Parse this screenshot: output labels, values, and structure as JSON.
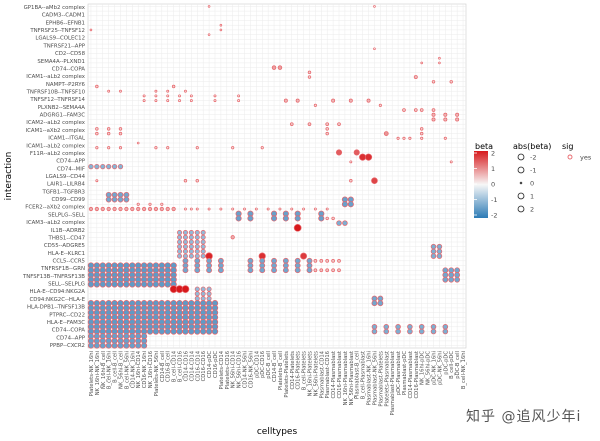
{
  "chart_data": {
    "type": "scatter",
    "xlabel": "celltypes",
    "ylabel": "interaction",
    "legend_position": "right",
    "grid": true,
    "y_categories_visible": [
      "GP1BA--aMb2 complex",
      "CADM3--CADM1",
      "EPHB6--EFNB1",
      "TNFRSF25--TNFSF12",
      "LGALS9--COLEC12",
      "TNFRSF21--APP",
      "CD2--CD58",
      "SEMA4A--PLXND1",
      "CD74--COPA",
      "ICAM1--aLb2 complex",
      "NAMPT--P2RY6",
      "TNFRSF10B--TNFSF10",
      "TNFSF12--TNFRSF14",
      "PLXNB2--SEMA4A",
      "ADGRG1--FAM3C",
      "ICAM2--aLb2 complex",
      "ICAM1--aXb2 complex",
      "ICAM1--ITGAL",
      "ICAM1--aLb2 complex",
      "F11R--aLb2 complex",
      "CD74--APP",
      "CD74--MIF",
      "LGALS9--CD44",
      "LAIR1--LILRB4",
      "TGFB1--TGFBR3",
      "CD99--CD99",
      "FCER2--aXb2 complex",
      "SELPLG--SELL",
      "ICAM3--aLb2 complex",
      "IL1B--ADRB2",
      "THBS1--CD47",
      "CD55--ADGRE5",
      "HLA-E--KLRC1",
      "CCL5--CCR5",
      "TNFRSF1B--GRN",
      "TNFSF13B--TNFRSF13B",
      "SELL--SELPLG",
      "HLA-E--CD94:NKG2A",
      "CD94:NKG2C--HLA-E",
      "HLA-DPB1--TNFSF13B",
      "PTPRC--CD22",
      "HLA-E--FAM3C",
      "CD74--COPA",
      "CD74--APP",
      "PPBP--CXCR2"
    ],
    "x_categories": [
      "Platelets-NK_16hi",
      "NK_16hi-NK_16hi",
      "NK_16hi-B_cell",
      "B_cell-NK_16hi",
      "B_cell-B_cell",
      "NK_56hi-B_cell",
      "B_cell-NK_56hi",
      "CD14-NK_16hi",
      "NK_16hi-CD14",
      "CD16-NK_16hi",
      "NK_16hi-CD16",
      "Platelets-NK_56hi",
      "CD14-B_cell",
      "CD16-B_cell",
      "B_cell-CD14",
      "B_cell-CD16",
      "CD14-CD16",
      "CD14-CD14",
      "CD16-CD14",
      "CD16-CD16",
      "CD14-pDC",
      "CD16-pDC",
      "Platelets-CD14",
      "Platelets-CD16",
      "NK_56hi-CD14",
      "NK_56hi-CD16",
      "CD14-NK_56hi",
      "CD16-NK_56hi",
      "pDC-CD14",
      "pDC-CD16",
      "pDC-B_cell",
      "CD14-B_cell_2",
      "Platelets-B_cell",
      "Platelets-Platelets",
      "CD14-Platelets",
      "CD16-Platelets",
      "B_cell-Platelets",
      "NK_16hi-Platelets",
      "NK_56hi-Platelets",
      "Plasmablast-CD14",
      "Plasmablast-CD16",
      "CD14-Plasmablast",
      "CD16-Plasmablast",
      "NK_16hi-Plasmablast",
      "NK_56hi-Plasmablast",
      "Plasmablast-B_cell",
      "B_cell-Plasmablast",
      "Plasmablast-NK_16hi",
      "Plasmablast-NK_56hi",
      "Plasmablast-Platelets",
      "Platelets-Plasmablast",
      "Plasmablast-Plasmablast",
      "pDC-Plasmablast",
      "Plasmablast-pDC",
      "CD14-Plasmablast_2",
      "CD16-Plasmablast_2",
      "NK_16hi-pDC",
      "NK_56hi-pDC",
      "pDC-NK_16hi",
      "pDC-NK_56hi",
      "pDC-pDC",
      "B_cell-pDC",
      "pDC-B_cell_2",
      "B_cell-NK_16hi_2"
    ],
    "fill_legend": {
      "title": "beta",
      "ticks": [
        "2",
        "1",
        "0",
        "-1",
        "-2"
      ],
      "range": [
        -2,
        2
      ],
      "colors": {
        "high": "#d7191c",
        "mid": "#f7f7f7",
        "low": "#2c7bb6"
      }
    },
    "size_legend": {
      "title": "abs(beta)",
      "labels": [
        "-2",
        "-1",
        "0",
        "1",
        "2"
      ]
    },
    "sig_legend": {
      "title": "sig",
      "labels": [
        "yes"
      ],
      "color": "#e8666b"
    },
    "ring_color": "#e8666b",
    "point_groups": [
      {
        "rows": [
          0
        ],
        "cols": [
          20,
          48
        ],
        "beta": 0.1
      },
      {
        "rows": [
          5
        ],
        "cols": [
          0
        ],
        "beta": 0.1
      },
      {
        "rows": [
          4,
          5
        ],
        "cols": [
          22
        ],
        "beta": 0.1
      },
      {
        "rows": [
          6
        ],
        "cols": [
          20
        ],
        "beta": 0.1
      },
      {
        "rows": [
          9
        ],
        "cols": [
          48
        ],
        "beta": 0.1
      },
      {
        "rows": [
          11,
          12
        ],
        "cols": [
          59
        ],
        "beta": 0.1
      },
      {
        "rows": [
          12
        ],
        "cols": [
          56
        ],
        "beta": 0.1
      },
      {
        "rows": [
          13
        ],
        "cols": [
          31,
          32
        ],
        "beta": 0.8
      },
      {
        "rows": [
          14,
          15
        ],
        "cols": [
          37
        ],
        "beta": 0.4
      },
      {
        "rows": [
          15
        ],
        "cols": [
          55
        ],
        "beta": 0.6
      },
      {
        "rows": [
          16
        ],
        "cols": [
          58,
          61
        ],
        "beta": 0.4
      },
      {
        "rows": [
          17
        ],
        "cols": [
          1,
          14
        ],
        "beta": 0.4
      },
      {
        "rows": [
          18
        ],
        "cols": [
          3,
          5,
          11,
          13,
          16
        ],
        "beta": 0.2
      },
      {
        "rows": [
          19,
          20
        ],
        "cols": [
          9,
          11,
          13,
          15,
          17,
          21,
          25
        ],
        "beta": 0.2
      },
      {
        "rows": [
          20
        ],
        "cols": [
          33,
          35,
          41,
          44,
          47
        ],
        "beta": 0.6
      },
      {
        "rows": [
          21
        ],
        "cols": [
          38,
          49
        ],
        "beta": 0.3
      },
      {
        "rows": [
          22
        ],
        "cols": [
          53,
          55,
          56,
          58
        ],
        "beta": 0.5
      },
      {
        "rows": [
          23,
          24
        ],
        "cols": [
          58,
          60,
          62
        ],
        "beta": 0.6
      },
      {
        "rows": [
          25
        ],
        "cols": [
          34,
          37,
          40,
          42
        ],
        "beta": 0.5
      },
      {
        "rows": [
          26,
          27
        ],
        "cols": [
          1,
          3,
          5,
          40,
          56
        ],
        "beta": 0.4
      },
      {
        "rows": [
          27
        ],
        "cols": [
          50
        ],
        "beta": 0.9
      },
      {
        "rows": [
          28
        ],
        "cols": [
          52,
          53,
          54,
          56,
          60
        ],
        "beta": 0.3
      },
      {
        "rows": [
          29
        ],
        "cols": [
          8
        ],
        "beta": 0.1
      },
      {
        "rows": [
          30
        ],
        "cols": [
          1,
          3,
          5,
          11,
          13,
          18,
          24,
          29
        ],
        "beta": 0.3
      },
      {
        "rows": [
          31
        ],
        "cols": [
          42,
          45
        ],
        "beta": 1.4
      },
      {
        "rows": [
          32
        ],
        "cols": [
          46,
          47
        ],
        "beta": 1.8
      },
      {
        "rows": [
          33
        ],
        "cols": [
          44,
          61
        ],
        "beta": 0.2
      },
      {
        "rows": [
          34
        ],
        "cols": [
          0,
          1,
          2,
          3,
          4,
          5
        ],
        "beta": -1.1
      },
      {
        "rows": [
          37
        ],
        "cols": [
          1
        ],
        "beta": 0.2
      },
      {
        "rows": [
          37
        ],
        "cols": [
          16,
          18,
          44
        ],
        "beta": 0.4
      },
      {
        "rows": [
          37
        ],
        "cols": [
          48
        ],
        "beta": 1.6
      },
      {
        "rows": [
          40,
          41
        ],
        "cols": [
          3,
          4,
          5,
          6
        ],
        "beta": -1.3
      },
      {
        "rows": [
          41,
          42
        ],
        "cols": [
          43,
          44
        ],
        "beta": -1.4
      },
      {
        "rows": [
          42
        ],
        "cols": [
          8,
          10,
          12
        ],
        "beta": 0.3
      },
      {
        "rows": [
          43
        ],
        "cols": [
          0,
          1,
          2,
          3,
          4,
          5,
          6,
          7,
          8,
          9,
          10,
          11,
          12,
          13,
          14
        ],
        "beta": 0.7
      },
      {
        "rows": [
          43
        ],
        "cols": [
          16,
          17,
          18,
          20,
          22,
          24,
          26,
          28,
          30,
          32,
          34,
          36,
          38,
          40
        ],
        "beta": 0.2
      },
      {
        "rows": [
          44,
          45
        ],
        "cols": [
          25,
          27,
          31,
          33,
          35,
          39
        ],
        "beta": -1.4
      },
      {
        "rows": [
          45
        ],
        "cols": [
          40,
          41
        ],
        "beta": 0.4
      },
      {
        "rows": [
          46
        ],
        "cols": [
          42,
          43
        ],
        "beta": -1.2
      },
      {
        "rows": [
          47
        ],
        "cols": [
          35
        ],
        "beta": 2.0
      },
      {
        "rows": [
          48,
          49,
          50,
          51,
          52,
          53
        ],
        "cols": [
          15,
          16,
          17,
          18,
          19
        ],
        "beta": -1.0
      },
      {
        "rows": [
          49
        ],
        "cols": [
          24
        ],
        "beta": 0.7
      },
      {
        "rows": [
          51,
          52,
          53
        ],
        "cols": [
          58,
          59
        ],
        "beta": -1.2
      },
      {
        "rows": [
          53
        ],
        "cols": [
          20
        ],
        "beta": 1.9
      },
      {
        "rows": [
          53
        ],
        "cols": [
          29
        ],
        "beta": 1.8
      },
      {
        "rows": [
          53
        ],
        "cols": [
          36
        ],
        "beta": 1.7
      },
      {
        "rows": [
          54,
          55,
          56
        ],
        "cols": [
          16,
          18,
          20,
          22,
          27,
          29,
          31,
          33,
          35,
          37
        ],
        "beta": -1.3
      },
      {
        "rows": [
          54,
          56
        ],
        "cols": [
          38,
          39,
          40,
          41,
          42
        ],
        "beta": 0.5
      },
      {
        "rows": [
          55,
          56,
          57,
          58,
          59
        ],
        "cols": [
          0,
          1,
          2,
          3,
          4,
          5,
          6,
          7,
          8,
          9,
          10,
          11,
          12,
          13,
          14
        ],
        "beta": -1.5
      },
      {
        "rows": [
          56,
          57,
          58
        ],
        "cols": [
          60,
          61,
          62
        ],
        "beta": -1.3
      },
      {
        "rows": [
          60
        ],
        "cols": [
          14,
          15,
          16
        ],
        "beta": 2.0
      },
      {
        "rows": [
          60,
          61,
          62
        ],
        "cols": [
          18,
          19,
          20
        ],
        "beta": -1.0
      },
      {
        "rows": [
          62,
          63
        ],
        "cols": [
          48,
          49
        ],
        "beta": -1.3
      },
      {
        "rows": [
          63,
          64,
          65,
          66,
          67,
          68,
          69
        ],
        "cols": [
          0,
          1,
          2,
          3,
          4,
          5,
          6,
          7,
          8,
          9,
          10,
          11,
          12,
          13,
          14,
          15,
          16,
          17,
          18,
          19,
          20,
          21
        ],
        "beta": -1.5
      },
      {
        "rows": [
          68,
          69
        ],
        "cols": [
          48,
          50,
          52,
          54,
          56,
          58,
          60
        ],
        "beta": -1.2
      },
      {
        "rows": [
          70,
          71,
          72
        ],
        "cols": [
          0,
          1,
          2,
          3,
          4,
          5,
          6,
          7,
          8,
          9
        ],
        "beta": -1.4
      }
    ]
  },
  "watermark": "知乎 @追风少年i"
}
